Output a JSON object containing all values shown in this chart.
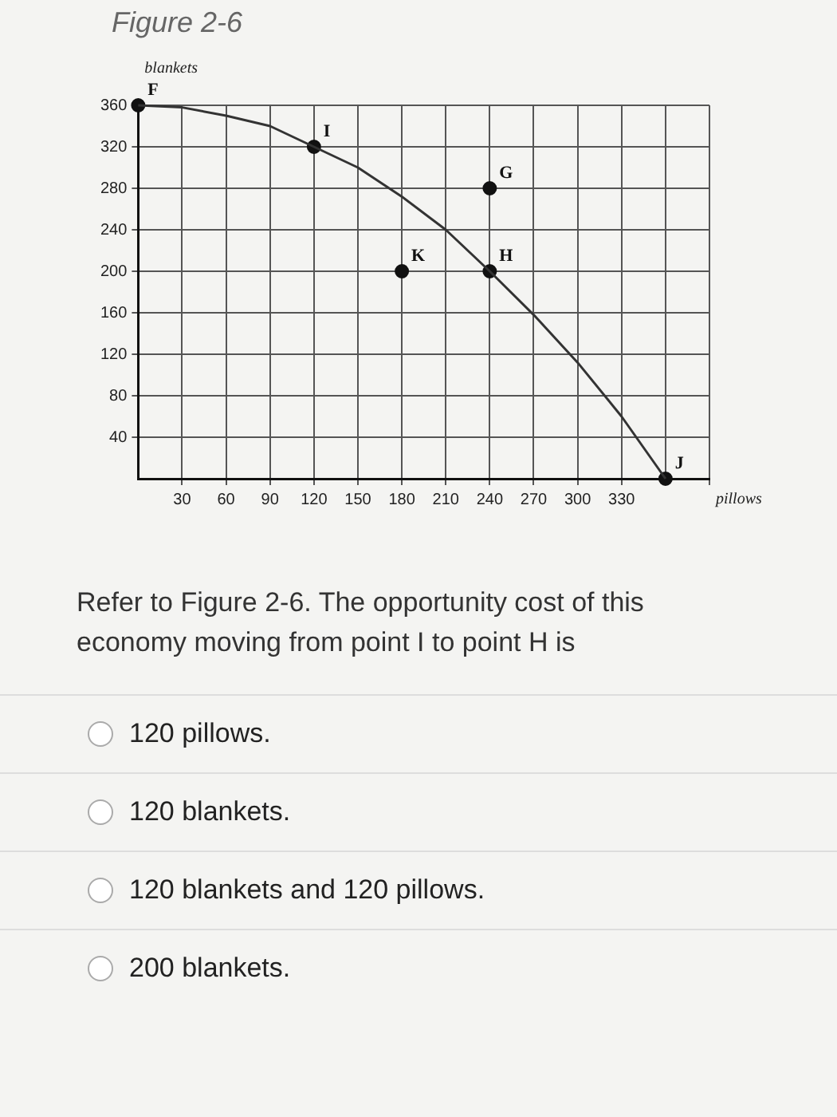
{
  "chart_data": {
    "type": "line",
    "title": "Figure 2-6",
    "xlabel": "pillows",
    "ylabel": "blankets",
    "xlim": [
      0,
      390
    ],
    "ylim": [
      0,
      360
    ],
    "xticks": [
      30,
      60,
      90,
      120,
      150,
      180,
      210,
      240,
      270,
      300,
      330,
      {
        "value": 360,
        "label": null
      },
      {
        "value": 390,
        "label": null
      }
    ],
    "yticks": [
      40,
      80,
      120,
      160,
      200,
      240,
      280,
      320,
      360
    ],
    "grid": true,
    "legend": false,
    "series": [
      {
        "color": "#333333",
        "marker": "none",
        "line_style": "solid",
        "x": [
          0,
          30,
          60,
          90,
          120,
          150,
          180,
          210,
          240,
          270,
          300,
          330,
          360
        ],
        "values": [
          360,
          358,
          350,
          340,
          320,
          300,
          272,
          240,
          200,
          158,
          112,
          60,
          0
        ]
      },
      {
        "type": "scatter",
        "color": "#111111",
        "marker": "circle",
        "x": [
          0,
          120,
          240,
          180,
          240,
          360
        ],
        "values": [
          360,
          320,
          280,
          200,
          200,
          0
        ]
      }
    ],
    "annotations": [
      {
        "text": "F",
        "x": 0,
        "y": 360
      },
      {
        "text": "I",
        "x": 120,
        "y": 320
      },
      {
        "text": "G",
        "x": 240,
        "y": 280
      },
      {
        "text": "K",
        "x": 180,
        "y": 200
      },
      {
        "text": "H",
        "x": 240,
        "y": 200
      },
      {
        "text": "J",
        "x": 360,
        "y": 0
      },
      "Refer to Figure 2-6. The opportunity cost of this economy moving from point I to point H is",
      "120 pillows.",
      "120 blankets.",
      "120 blankets and 120 pillows.",
      "200 blankets."
    ]
  }
}
